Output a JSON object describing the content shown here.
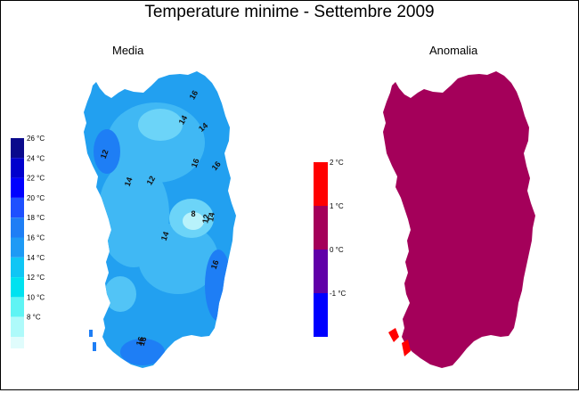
{
  "title": "Temperature minime - Settembre 2009",
  "maps": {
    "left_title": "Media",
    "right_title": "Anomalia"
  },
  "legend_media": {
    "unit": "°C",
    "entries": [
      {
        "label": "26 °C",
        "color": "#0a0a8c"
      },
      {
        "label": "24 °C",
        "color": "#0000cd"
      },
      {
        "label": "22 °C",
        "color": "#0000ff"
      },
      {
        "label": "20 °C",
        "color": "#1e50ff"
      },
      {
        "label": "18 °C",
        "color": "#1e7ef5"
      },
      {
        "label": "16 °C",
        "color": "#1e9af5"
      },
      {
        "label": "14 °C",
        "color": "#10c6f5"
      },
      {
        "label": "12 °C",
        "color": "#00e2f0"
      },
      {
        "label": "10 °C",
        "color": "#5ff4f4"
      },
      {
        "label": "8 °C",
        "color": "#aefafa"
      }
    ],
    "bottom_color": "#e0fcfc"
  },
  "legend_anomalia": {
    "entries": [
      {
        "label": "2 °C",
        "color": "#ff0000"
      },
      {
        "label": "1 °C",
        "color": "#a4005a"
      },
      {
        "label": "0 °C",
        "color": "#6000a8"
      },
      {
        "label": "-1 °C",
        "color": "#0000ff"
      }
    ]
  },
  "isotherm_labels": [
    "16",
    "14",
    "14",
    "12",
    "16",
    "12",
    "16",
    "14",
    "8",
    "12",
    "14",
    "14",
    "16",
    "16",
    "16"
  ],
  "colors": {
    "media_fill": "#22a0f0",
    "media_light": "#8ee8f8",
    "media_dark": "#1e7ef5",
    "anomalia_fill": "#a4005a",
    "anomalia_hot": "#ff0000"
  }
}
